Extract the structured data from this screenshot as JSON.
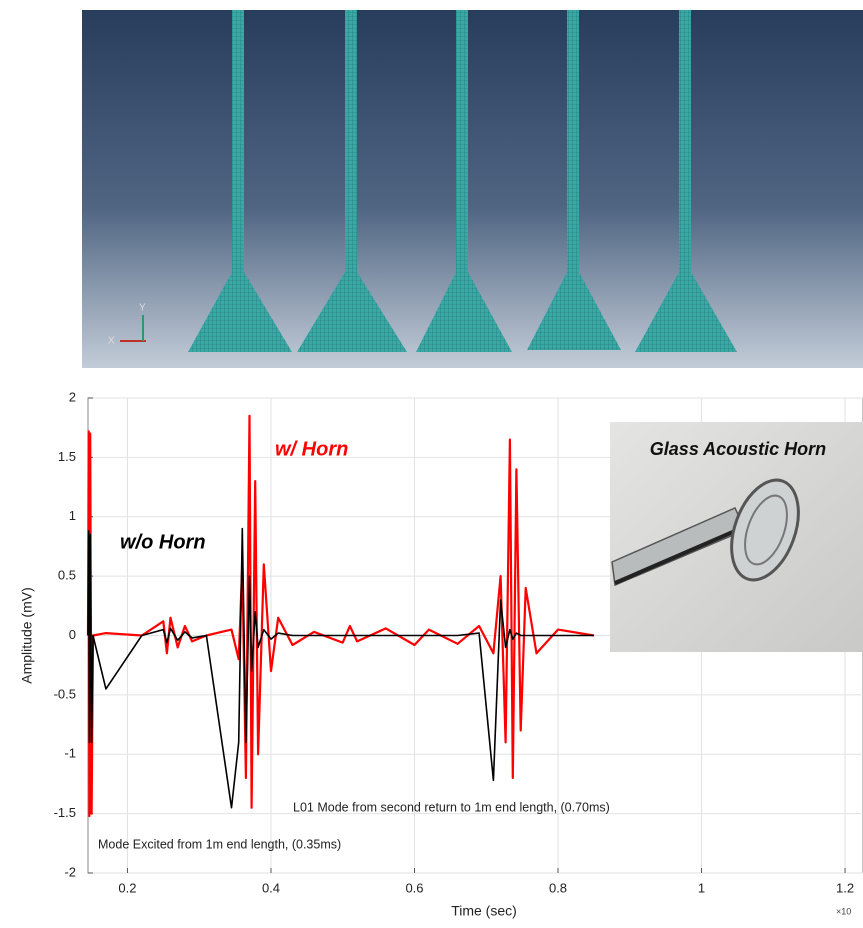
{
  "render": {
    "axis_x_label": "X",
    "axis_y_label": "Y"
  },
  "chart_data": {
    "type": "line",
    "x": [
      0.145,
      0.146,
      0.147,
      0.148,
      0.15,
      0.152,
      0.17,
      0.22,
      0.25,
      0.255,
      0.26,
      0.27,
      0.28,
      0.29,
      0.31,
      0.345,
      0.355,
      0.36,
      0.365,
      0.37,
      0.373,
      0.378,
      0.382,
      0.39,
      0.4,
      0.41,
      0.43,
      0.46,
      0.5,
      0.51,
      0.52,
      0.56,
      0.6,
      0.62,
      0.66,
      0.69,
      0.71,
      0.72,
      0.727,
      0.733,
      0.737,
      0.742,
      0.748,
      0.755,
      0.77,
      0.8,
      0.85
    ],
    "series": [
      {
        "name": "w/ Horn",
        "color": "#ff0000",
        "values": [
          0,
          1.72,
          -1.52,
          1.7,
          -1.5,
          0,
          0.02,
          0,
          0.12,
          -0.15,
          0.15,
          -0.1,
          0.08,
          -0.05,
          0,
          0.05,
          -0.2,
          0.6,
          -1.2,
          1.85,
          -1.45,
          1.3,
          -1.0,
          0.6,
          -0.3,
          0.15,
          -0.08,
          0.03,
          -0.06,
          0.08,
          -0.05,
          0.06,
          -0.08,
          0.05,
          -0.07,
          0.08,
          -0.15,
          0.5,
          -0.9,
          1.65,
          -1.2,
          1.4,
          -0.8,
          0.4,
          -0.15,
          0.05,
          0
        ]
      },
      {
        "name": "w/o Horn",
        "color": "#000000",
        "values": [
          0,
          0.88,
          -0.9,
          0.85,
          -0.9,
          0,
          -0.45,
          0,
          0.05,
          -0.06,
          0.06,
          -0.04,
          0.03,
          -0.02,
          0,
          -1.45,
          -0.9,
          0.9,
          -0.9,
          0.5,
          -0.3,
          0.2,
          -0.1,
          0.05,
          -0.03,
          0.02,
          0,
          0,
          0,
          0,
          0,
          0,
          0,
          0,
          0,
          0.02,
          -1.22,
          0.3,
          -0.1,
          0.05,
          -0.03,
          0.02,
          0,
          0,
          0,
          0,
          0
        ]
      }
    ],
    "xlabel": "Time (sec)",
    "ylabel": "Amplitude (mV)",
    "x_multiplier": "×10",
    "xlim": [
      0.145,
      1.225
    ],
    "ylim": [
      -2,
      2
    ],
    "xticks": [
      0.2,
      0.4,
      0.6,
      0.8,
      1,
      1.2
    ],
    "yticks": [
      -2,
      -1.5,
      -1,
      -0.5,
      0,
      0.5,
      1,
      1.5,
      2
    ],
    "grid": true,
    "annotations": [
      "Mode Excited from 1m end length, (0.35ms)",
      "L01 Mode from second return to 1m end length, (0.70ms)"
    ],
    "inset_title": "Glass Acoustic Horn"
  }
}
